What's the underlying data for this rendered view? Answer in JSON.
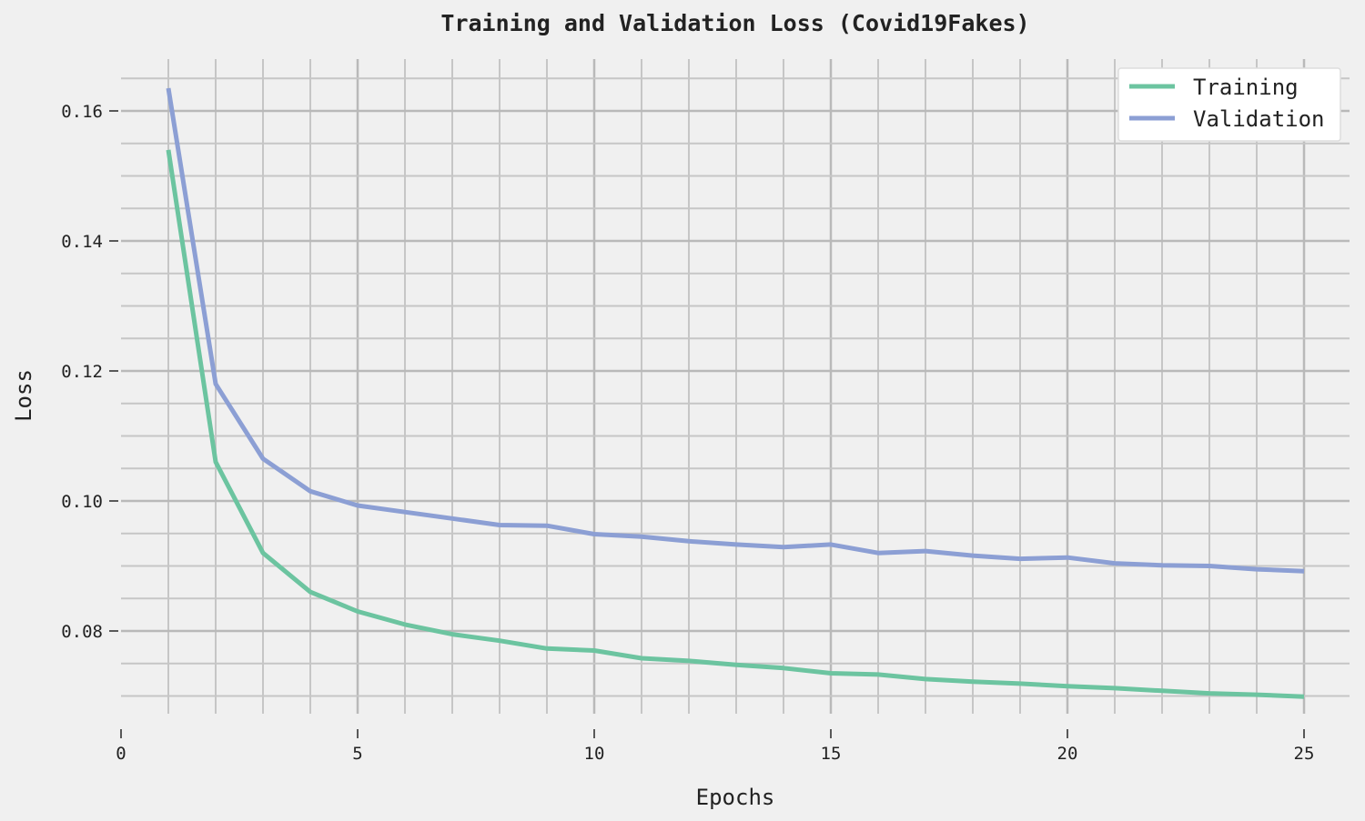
{
  "chart_data": {
    "type": "line",
    "title": "Training and Validation Loss (Covid19Fakes)",
    "xlabel": "Epochs",
    "ylabel": "Loss",
    "xlim": [
      0,
      25
    ],
    "ylim": [
      0.066,
      0.168
    ],
    "xticks": [
      0,
      5,
      10,
      15,
      20,
      25
    ],
    "xtick_labels": [
      "0",
      "5",
      "10",
      "15",
      "20",
      "25"
    ],
    "yticks": [
      0.08,
      0.1,
      0.12,
      0.14,
      0.16
    ],
    "ytick_labels": [
      "0.08",
      "0.10",
      "0.12",
      "0.14",
      "0.16"
    ],
    "grid": true,
    "legend_position": "top-right",
    "x": [
      1,
      2,
      3,
      4,
      5,
      6,
      7,
      8,
      9,
      10,
      11,
      12,
      13,
      14,
      15,
      16,
      17,
      18,
      19,
      20,
      21,
      22,
      23,
      24,
      25
    ],
    "series": [
      {
        "name": "Training",
        "color": "#6cc4a0",
        "values": [
          0.154,
          0.106,
          0.092,
          0.086,
          0.083,
          0.081,
          0.0795,
          0.0785,
          0.0773,
          0.077,
          0.0758,
          0.0754,
          0.0748,
          0.0743,
          0.0735,
          0.0733,
          0.0726,
          0.0722,
          0.0719,
          0.0715,
          0.0712,
          0.0708,
          0.0704,
          0.0702,
          0.0699
        ]
      },
      {
        "name": "Validation",
        "color": "#8c9fd4",
        "values": [
          0.1635,
          0.118,
          0.1065,
          0.1015,
          0.0993,
          0.0983,
          0.0973,
          0.0963,
          0.0962,
          0.0949,
          0.0945,
          0.0938,
          0.0933,
          0.0929,
          0.0933,
          0.092,
          0.0923,
          0.0916,
          0.0911,
          0.0913,
          0.0904,
          0.0901,
          0.09,
          0.0895,
          0.0892
        ]
      }
    ]
  }
}
